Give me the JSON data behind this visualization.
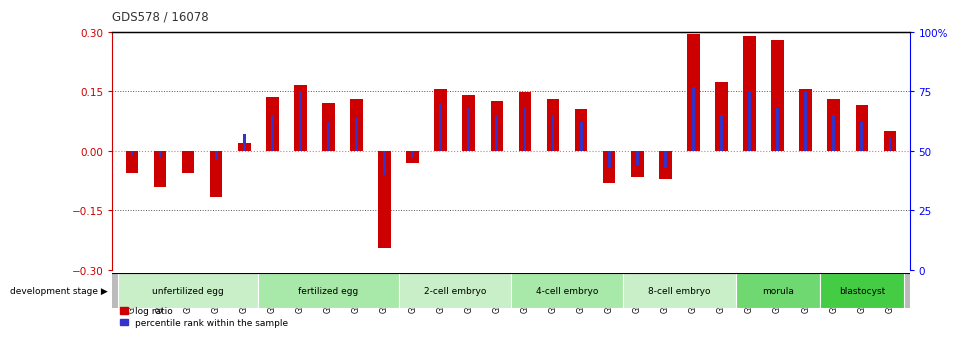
{
  "title": "GDS578 / 16078",
  "samples": [
    "GSM14658",
    "GSM14660",
    "GSM14661",
    "GSM14662",
    "GSM14663",
    "GSM14664",
    "GSM14665",
    "GSM14666",
    "GSM14667",
    "GSM14668",
    "GSM14677",
    "GSM14678",
    "GSM14679",
    "GSM14680",
    "GSM14681",
    "GSM14682",
    "GSM14683",
    "GSM14684",
    "GSM14685",
    "GSM14686",
    "GSM14687",
    "GSM14688",
    "GSM14689",
    "GSM14690",
    "GSM14691",
    "GSM14692",
    "GSM14693",
    "GSM14694"
  ],
  "log_ratio": [
    -0.055,
    -0.09,
    -0.055,
    -0.115,
    0.02,
    0.135,
    0.165,
    0.12,
    0.13,
    -0.245,
    -0.03,
    0.155,
    0.14,
    0.125,
    0.148,
    0.13,
    0.105,
    -0.08,
    -0.065,
    -0.07,
    0.295,
    0.175,
    0.29,
    0.28,
    0.155,
    0.13,
    0.115,
    0.05
  ],
  "percentile_rank": [
    48,
    47,
    50,
    46,
    57,
    65,
    75,
    62,
    64,
    40,
    47,
    70,
    68,
    65,
    68,
    65,
    62,
    43,
    44,
    43,
    77,
    65,
    75,
    68,
    75,
    65,
    62,
    56
  ],
  "stages": [
    {
      "label": "unfertilized egg",
      "start": 0,
      "end": 5,
      "color": "#c8efc8"
    },
    {
      "label": "fertilized egg",
      "start": 5,
      "end": 10,
      "color": "#a8e8a8"
    },
    {
      "label": "2-cell embryo",
      "start": 10,
      "end": 14,
      "color": "#c8efc8"
    },
    {
      "label": "4-cell embryo",
      "start": 14,
      "end": 18,
      "color": "#a8e8a8"
    },
    {
      "label": "8-cell embryo",
      "start": 18,
      "end": 22,
      "color": "#c8efc8"
    },
    {
      "label": "morula",
      "start": 22,
      "end": 25,
      "color": "#70d870"
    },
    {
      "label": "blastocyst",
      "start": 25,
      "end": 28,
      "color": "#44cc44"
    }
  ],
  "ylim": [
    -0.3,
    0.3
  ],
  "y2lim": [
    0,
    100
  ],
  "yticks_left": [
    -0.3,
    -0.15,
    0,
    0.15,
    0.3
  ],
  "yticks_right": [
    0,
    25,
    50,
    75,
    100
  ],
  "bar_color_red": "#cc0000",
  "bar_color_blue": "#3333cc",
  "zero_line_color": "#ff6666",
  "dotted_line_color": "#555555",
  "bg_color": "#ffffff",
  "title_color": "#333333"
}
